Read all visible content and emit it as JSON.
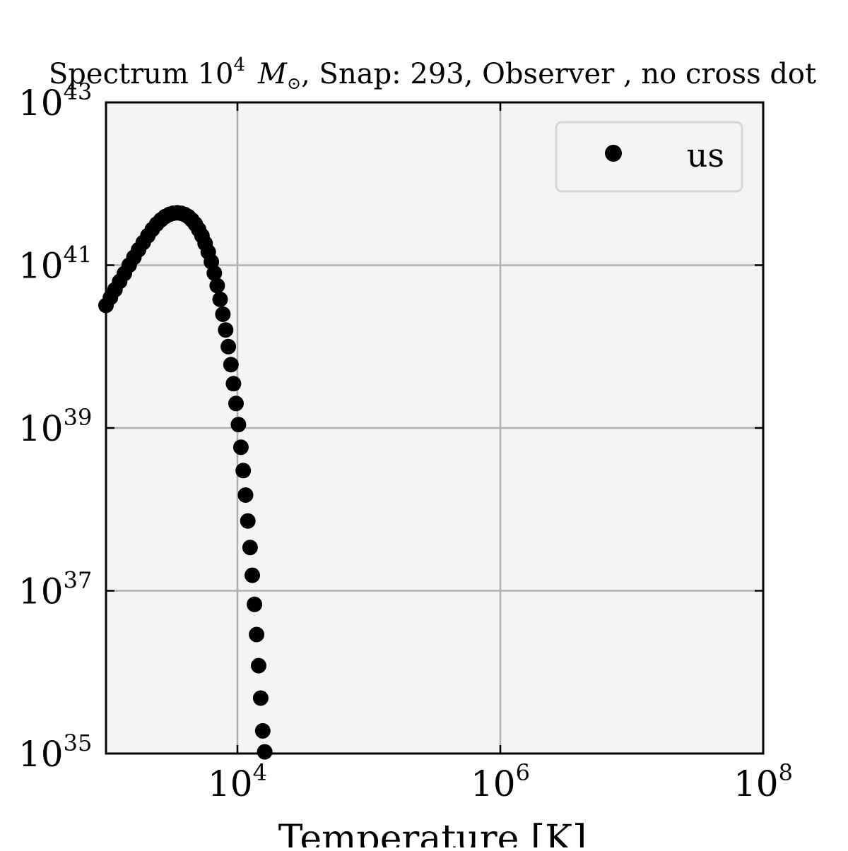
{
  "chart_data": {
    "type": "scatter",
    "title_parts": {
      "prefix": "Spectrum 10",
      "prefix_sup": "4",
      "mass_symbol": "M",
      "mass_sub": "⊙",
      "suffix": ", Snap: 293, Observer , no cross dot"
    },
    "xlabel": "Temperature [K]",
    "ylabel": "",
    "x_scale": "log",
    "y_scale": "log",
    "xlim": [
      1000,
      100000000
    ],
    "ylim": [
      1e+35,
      1e+43
    ],
    "x_ticks": [
      {
        "base": "10",
        "exp": "4",
        "value": 10000
      },
      {
        "base": "10",
        "exp": "6",
        "value": 1000000
      },
      {
        "base": "10",
        "exp": "8",
        "value": 100000000
      }
    ],
    "y_ticks": [
      {
        "base": "10",
        "exp": "35",
        "value": 1e+35
      },
      {
        "base": "10",
        "exp": "37",
        "value": 1e+37
      },
      {
        "base": "10",
        "exp": "39",
        "value": 1e+39
      },
      {
        "base": "10",
        "exp": "41",
        "value": 1e+41
      },
      {
        "base": "10",
        "exp": "43",
        "value": 1e+43
      }
    ],
    "grid": true,
    "legend_position": "top-right",
    "series": [
      {
        "name": "us",
        "color": "#000000",
        "marker": "circle",
        "points": [
          [
            1000,
            3.2e+40
          ],
          [
            1080,
            4e+40
          ],
          [
            1170,
            5e+40
          ],
          [
            1270,
            6.3e+40
          ],
          [
            1380,
            7.9e+40
          ],
          [
            1500,
            1e+41
          ],
          [
            1630,
            1.25e+41
          ],
          [
            1770,
            1.55e+41
          ],
          [
            1920,
            1.9e+41
          ],
          [
            2080,
            2.3e+41
          ],
          [
            2250,
            2.75e+41
          ],
          [
            2430,
            3.2e+41
          ],
          [
            2620,
            3.6e+41
          ],
          [
            2820,
            3.95e+41
          ],
          [
            3030,
            4.2e+41
          ],
          [
            3250,
            4.35e+41
          ],
          [
            3480,
            4.4e+41
          ],
          [
            3720,
            4.35e+41
          ],
          [
            3970,
            4.2e+41
          ],
          [
            4230,
            3.95e+41
          ],
          [
            4500,
            3.6e+41
          ],
          [
            4780,
            3.2e+41
          ],
          [
            5070,
            2.75e+41
          ],
          [
            5370,
            2.3e+41
          ],
          [
            5680,
            1.85e+41
          ],
          [
            6000,
            1.45e+41
          ],
          [
            6330,
            1.1e+41
          ],
          [
            6670,
            8e+40
          ],
          [
            7020,
            5.6e+40
          ],
          [
            7380,
            3.8e+40
          ],
          [
            7750,
            2.5e+40
          ],
          [
            8130,
            1.6e+40
          ],
          [
            8520,
            1e+40
          ],
          [
            8920,
            6e+39
          ],
          [
            9330,
            3.5e+39
          ],
          [
            9750,
            2e+39
          ],
          [
            10180,
            1.1e+39
          ],
          [
            10620,
            5.8e+38
          ],
          [
            11070,
            3e+38
          ],
          [
            11530,
            1.5e+38
          ],
          [
            12000,
            7.2e+37
          ],
          [
            12480,
            3.4e+37
          ],
          [
            12970,
            1.55e+37
          ],
          [
            13470,
            6.8e+36
          ],
          [
            13980,
            2.9e+36
          ],
          [
            14500,
            1.2e+36
          ],
          [
            15030,
            4.8e+35
          ],
          [
            15570,
            1.9e+35
          ],
          [
            16120,
            1.05e+35
          ]
        ]
      }
    ]
  }
}
